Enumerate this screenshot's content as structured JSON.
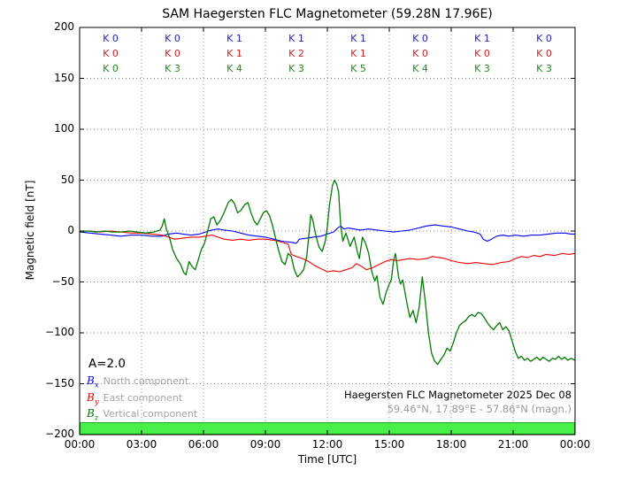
{
  "title": "SAM Haegersten FLC Magnetometer (59.28N 17.96E)",
  "colors": {
    "bx_line": "#0000ee",
    "by_line": "#ee0000",
    "bz_line": "#007c00",
    "k_blue": "#2222cc",
    "k_red": "#cc2222",
    "k_green": "#1e8c1e",
    "status_bar_fill": "#49ef49",
    "status_bar_edge": "#009500",
    "grid": "#888888",
    "muted_text": "#a3a3a3"
  },
  "axes": {
    "ylabel": "Magnetic field [nT]",
    "xlabel": "Time [UTC]",
    "y_tick_values": [
      200,
      150,
      100,
      50,
      0,
      -50,
      -100,
      -150,
      -200
    ],
    "y_tick_labels": [
      "200",
      "150",
      "100",
      "50",
      "0",
      "−50",
      "−100",
      "−150",
      "−200"
    ],
    "x_tick_hours": [
      0,
      3,
      6,
      9,
      12,
      15,
      18,
      21,
      24
    ],
    "x_tick_labels": [
      "00:00",
      "03:00",
      "06:00",
      "09:00",
      "12:00",
      "15:00",
      "18:00",
      "21:00",
      "00:00"
    ]
  },
  "k_index": {
    "rows": [
      {
        "component": "Bx",
        "color_key": "k_blue",
        "values": [
          "K 0",
          "K 0",
          "K 1",
          "K 1",
          "K 1",
          "K 0",
          "K 1",
          "K 0"
        ]
      },
      {
        "component": "By",
        "color_key": "k_red",
        "values": [
          "K 0",
          "K 0",
          "K 1",
          "K 2",
          "K 1",
          "K 0",
          "K 0",
          "K 0"
        ]
      },
      {
        "component": "Bz",
        "color_key": "k_green",
        "values": [
          "K 0",
          "K 3",
          "K 4",
          "K 3",
          "K 5",
          "K 4",
          "K 3",
          "K 3"
        ]
      }
    ]
  },
  "legend": {
    "a_index": "A=2.0",
    "items": [
      {
        "symbol": "B",
        "sub": "x",
        "label": "North component",
        "color_key": "bx_line"
      },
      {
        "symbol": "B",
        "sub": "y",
        "label": "East component",
        "color_key": "by_line"
      },
      {
        "symbol": "B",
        "sub": "z",
        "label": "Vertical component",
        "color_key": "bz_line"
      }
    ]
  },
  "annotation": {
    "line1": "Haegersten FLC Magnetometer 2025 Dec 08",
    "line2": "59.46°N, 17.89°E - 57.86°N (magn.)"
  },
  "chart_data": {
    "type": "line",
    "title": "SAM Haegersten FLC Magnetometer (59.28N 17.96E)",
    "xlabel": "Time [UTC]",
    "ylabel": "Magnetic field [nT]",
    "xlim": [
      0,
      24
    ],
    "ylim": [
      -200,
      200
    ],
    "grid": true,
    "x_unit": "hours UTC",
    "status_bar": {
      "from_hour": 0,
      "to_hour": 24,
      "meaning": "green availability bar along bottom of plot"
    },
    "series": [
      {
        "name": "Bx North component",
        "color_key": "bx_line",
        "points": [
          [
            0,
            -1
          ],
          [
            0.5,
            -2
          ],
          [
            1,
            -3
          ],
          [
            1.5,
            -4
          ],
          [
            2,
            -5
          ],
          [
            2.5,
            -4
          ],
          [
            3,
            -4
          ],
          [
            3.5,
            -5
          ],
          [
            4,
            -5
          ],
          [
            4.3,
            -3
          ],
          [
            4.7,
            -2
          ],
          [
            5,
            -3
          ],
          [
            5.4,
            -4
          ],
          [
            5.8,
            -3
          ],
          [
            6.1,
            -1
          ],
          [
            6.4,
            1
          ],
          [
            6.7,
            2
          ],
          [
            7,
            1
          ],
          [
            7.4,
            0
          ],
          [
            7.8,
            -2
          ],
          [
            8.2,
            -4
          ],
          [
            8.6,
            -5
          ],
          [
            9,
            -6
          ],
          [
            9.4,
            -8
          ],
          [
            9.8,
            -10
          ],
          [
            10.2,
            -11
          ],
          [
            10.5,
            -12
          ],
          [
            10.65,
            -8
          ],
          [
            11,
            -7
          ],
          [
            11.3,
            -6
          ],
          [
            11.7,
            -5
          ],
          [
            12,
            -3
          ],
          [
            12.3,
            -1
          ],
          [
            12.5,
            3
          ],
          [
            12.65,
            5
          ],
          [
            12.8,
            2
          ],
          [
            13,
            3
          ],
          [
            13.3,
            2
          ],
          [
            13.6,
            1
          ],
          [
            14,
            2
          ],
          [
            14.4,
            1
          ],
          [
            14.8,
            0
          ],
          [
            15.2,
            -1
          ],
          [
            15.6,
            0
          ],
          [
            16,
            1
          ],
          [
            16.4,
            3
          ],
          [
            16.8,
            5
          ],
          [
            17.2,
            6
          ],
          [
            17.6,
            5
          ],
          [
            18,
            4
          ],
          [
            18.4,
            2
          ],
          [
            18.8,
            0
          ],
          [
            19.1,
            -1
          ],
          [
            19.4,
            -3
          ],
          [
            19.55,
            -8
          ],
          [
            19.75,
            -10
          ],
          [
            19.95,
            -8
          ],
          [
            20.2,
            -5
          ],
          [
            20.5,
            -4
          ],
          [
            20.8,
            -5
          ],
          [
            21.1,
            -4
          ],
          [
            21.5,
            -5
          ],
          [
            21.9,
            -4
          ],
          [
            22.3,
            -4
          ],
          [
            22.7,
            -3
          ],
          [
            23.1,
            -2
          ],
          [
            23.5,
            -2
          ],
          [
            23.8,
            -3
          ],
          [
            24,
            -3
          ]
        ]
      },
      {
        "name": "By East component",
        "color_key": "by_line",
        "points": [
          [
            0,
            0
          ],
          [
            0.5,
            0
          ],
          [
            1,
            -1
          ],
          [
            1.5,
            0
          ],
          [
            2,
            -1
          ],
          [
            2.5,
            -2
          ],
          [
            3,
            -2
          ],
          [
            3.5,
            -3
          ],
          [
            4,
            -4
          ],
          [
            4.3,
            -6
          ],
          [
            4.6,
            -8
          ],
          [
            5,
            -7
          ],
          [
            5.4,
            -6
          ],
          [
            5.8,
            -6
          ],
          [
            6.1,
            -5
          ],
          [
            6.4,
            -4
          ],
          [
            6.7,
            -6
          ],
          [
            7,
            -8
          ],
          [
            7.4,
            -9
          ],
          [
            7.8,
            -8
          ],
          [
            8.2,
            -9
          ],
          [
            8.6,
            -8
          ],
          [
            9,
            -8
          ],
          [
            9.4,
            -9
          ],
          [
            9.8,
            -11
          ],
          [
            10.1,
            -13
          ],
          [
            10.25,
            -23
          ],
          [
            10.5,
            -25
          ],
          [
            10.8,
            -27
          ],
          [
            11.1,
            -30
          ],
          [
            11.4,
            -34
          ],
          [
            11.7,
            -37
          ],
          [
            12,
            -40
          ],
          [
            12.3,
            -39
          ],
          [
            12.6,
            -40
          ],
          [
            12.9,
            -38
          ],
          [
            13.2,
            -36
          ],
          [
            13.4,
            -32
          ],
          [
            13.6,
            -34
          ],
          [
            13.9,
            -38
          ],
          [
            14.2,
            -36
          ],
          [
            14.5,
            -33
          ],
          [
            14.8,
            -30
          ],
          [
            15.1,
            -28
          ],
          [
            15.4,
            -29
          ],
          [
            15.7,
            -28
          ],
          [
            16,
            -27
          ],
          [
            16.4,
            -28
          ],
          [
            16.8,
            -27
          ],
          [
            17.1,
            -25
          ],
          [
            17.4,
            -26
          ],
          [
            17.7,
            -27
          ],
          [
            18,
            -29
          ],
          [
            18.4,
            -31
          ],
          [
            18.8,
            -32
          ],
          [
            19.2,
            -31
          ],
          [
            19.6,
            -32
          ],
          [
            20,
            -33
          ],
          [
            20.4,
            -31
          ],
          [
            20.8,
            -30
          ],
          [
            21.1,
            -27
          ],
          [
            21.4,
            -25
          ],
          [
            21.7,
            -26
          ],
          [
            22,
            -24
          ],
          [
            22.3,
            -25
          ],
          [
            22.6,
            -23
          ],
          [
            23,
            -24
          ],
          [
            23.4,
            -22
          ],
          [
            23.7,
            -23
          ],
          [
            24,
            -22
          ]
        ]
      },
      {
        "name": "Bz Vertical component",
        "color_key": "bz_line",
        "points": [
          [
            0,
            -1
          ],
          [
            0.4,
            0
          ],
          [
            0.8,
            -1
          ],
          [
            1.2,
            0
          ],
          [
            1.6,
            -1
          ],
          [
            2,
            -1
          ],
          [
            2.4,
            0
          ],
          [
            2.8,
            -1
          ],
          [
            3.2,
            -2
          ],
          [
            3.6,
            -1
          ],
          [
            3.9,
            1
          ],
          [
            4,
            5
          ],
          [
            4.1,
            12
          ],
          [
            4.2,
            2
          ],
          [
            4.35,
            -6
          ],
          [
            4.5,
            -18
          ],
          [
            4.7,
            -27
          ],
          [
            4.9,
            -33
          ],
          [
            5.05,
            -41
          ],
          [
            5.15,
            -43
          ],
          [
            5.3,
            -30
          ],
          [
            5.45,
            -35
          ],
          [
            5.6,
            -38
          ],
          [
            5.75,
            -28
          ],
          [
            5.9,
            -18
          ],
          [
            6.05,
            -12
          ],
          [
            6.2,
            0
          ],
          [
            6.35,
            12
          ],
          [
            6.5,
            14
          ],
          [
            6.65,
            6
          ],
          [
            6.8,
            10
          ],
          [
            7,
            18
          ],
          [
            7.2,
            28
          ],
          [
            7.35,
            31
          ],
          [
            7.5,
            27
          ],
          [
            7.65,
            18
          ],
          [
            7.8,
            20
          ],
          [
            8,
            26
          ],
          [
            8.15,
            28
          ],
          [
            8.3,
            18
          ],
          [
            8.45,
            10
          ],
          [
            8.6,
            6
          ],
          [
            8.75,
            12
          ],
          [
            8.9,
            18
          ],
          [
            9.05,
            20
          ],
          [
            9.2,
            15
          ],
          [
            9.35,
            5
          ],
          [
            9.5,
            -8
          ],
          [
            9.65,
            -20
          ],
          [
            9.8,
            -30
          ],
          [
            9.95,
            -33
          ],
          [
            10.1,
            -22
          ],
          [
            10.25,
            -25
          ],
          [
            10.4,
            -38
          ],
          [
            10.55,
            -45
          ],
          [
            10.7,
            -42
          ],
          [
            10.85,
            -38
          ],
          [
            11,
            -25
          ],
          [
            11.1,
            -5
          ],
          [
            11.2,
            16
          ],
          [
            11.3,
            10
          ],
          [
            11.45,
            -5
          ],
          [
            11.6,
            -16
          ],
          [
            11.75,
            -20
          ],
          [
            11.9,
            -10
          ],
          [
            12,
            4
          ],
          [
            12.1,
            25
          ],
          [
            12.25,
            45
          ],
          [
            12.35,
            50
          ],
          [
            12.45,
            46
          ],
          [
            12.55,
            38
          ],
          [
            12.6,
            20
          ],
          [
            12.65,
            5
          ],
          [
            12.75,
            -10
          ],
          [
            12.9,
            -2
          ],
          [
            13.1,
            -15
          ],
          [
            13.3,
            -6
          ],
          [
            13.45,
            -20
          ],
          [
            13.55,
            -27
          ],
          [
            13.7,
            -6
          ],
          [
            13.85,
            -12
          ],
          [
            14,
            -22
          ],
          [
            14.15,
            -40
          ],
          [
            14.3,
            -49
          ],
          [
            14.4,
            -44
          ],
          [
            14.55,
            -65
          ],
          [
            14.7,
            -72
          ],
          [
            14.85,
            -60
          ],
          [
            15,
            -52
          ],
          [
            15.1,
            -48
          ],
          [
            15.2,
            -30
          ],
          [
            15.3,
            -22
          ],
          [
            15.45,
            -45
          ],
          [
            15.55,
            -52
          ],
          [
            15.65,
            -48
          ],
          [
            15.85,
            -70
          ],
          [
            16,
            -85
          ],
          [
            16.15,
            -78
          ],
          [
            16.3,
            -90
          ],
          [
            16.45,
            -75
          ],
          [
            16.6,
            -45
          ],
          [
            16.75,
            -70
          ],
          [
            16.9,
            -100
          ],
          [
            17.05,
            -120
          ],
          [
            17.2,
            -128
          ],
          [
            17.35,
            -131
          ],
          [
            17.5,
            -126
          ],
          [
            17.65,
            -122
          ],
          [
            17.8,
            -115
          ],
          [
            17.95,
            -118
          ],
          [
            18.1,
            -110
          ],
          [
            18.25,
            -100
          ],
          [
            18.4,
            -93
          ],
          [
            18.55,
            -90
          ],
          [
            18.7,
            -88
          ],
          [
            18.85,
            -84
          ],
          [
            19,
            -82
          ],
          [
            19.15,
            -84
          ],
          [
            19.3,
            -80
          ],
          [
            19.45,
            -81
          ],
          [
            19.6,
            -85
          ],
          [
            19.75,
            -90
          ],
          [
            19.9,
            -94
          ],
          [
            20.05,
            -97
          ],
          [
            20.2,
            -93
          ],
          [
            20.35,
            -90
          ],
          [
            20.5,
            -97
          ],
          [
            20.65,
            -94
          ],
          [
            20.8,
            -98
          ],
          [
            20.95,
            -108
          ],
          [
            21.1,
            -118
          ],
          [
            21.25,
            -125
          ],
          [
            21.4,
            -123
          ],
          [
            21.55,
            -127
          ],
          [
            21.7,
            -125
          ],
          [
            21.85,
            -128
          ],
          [
            22,
            -126
          ],
          [
            22.15,
            -124
          ],
          [
            22.3,
            -127
          ],
          [
            22.45,
            -124
          ],
          [
            22.6,
            -126
          ],
          [
            22.75,
            -128
          ],
          [
            22.9,
            -125
          ],
          [
            23.05,
            -126
          ],
          [
            23.2,
            -123
          ],
          [
            23.35,
            -126
          ],
          [
            23.5,
            -124
          ],
          [
            23.65,
            -127
          ],
          [
            23.8,
            -125
          ],
          [
            24,
            -127
          ]
        ]
      }
    ]
  }
}
